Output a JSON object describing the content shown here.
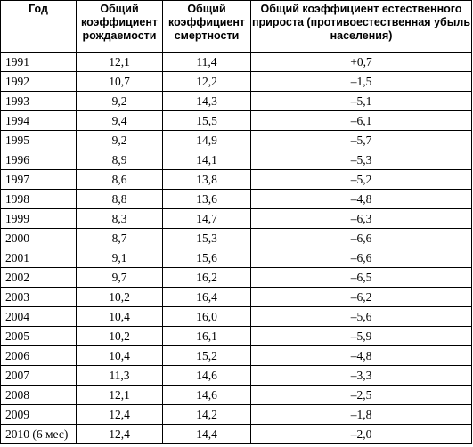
{
  "table": {
    "headers": [
      "Год",
      "Общий коэффициент рождаемости",
      "Общий коэффициент смертности",
      "Общий коэффициент естественного прироста (противоестественная убыль населения)"
    ],
    "rows": [
      {
        "year": "1991",
        "birth": "12,1",
        "death": "11,4",
        "growth": "+0,7"
      },
      {
        "year": "1992",
        "birth": "10,7",
        "death": "12,2",
        "growth": "–1,5"
      },
      {
        "year": "1993",
        "birth": "9,2",
        "death": "14,3",
        "growth": "–5,1"
      },
      {
        "year": "1994",
        "birth": "9,4",
        "death": "15,5",
        "growth": "–6,1"
      },
      {
        "year": "1995",
        "birth": "9,2",
        "death": "14,9",
        "growth": "–5,7"
      },
      {
        "year": "1996",
        "birth": "8,9",
        "death": "14,1",
        "growth": "–5,3"
      },
      {
        "year": "1997",
        "birth": "8,6",
        "death": "13,8",
        "growth": "–5,2"
      },
      {
        "year": "1998",
        "birth": "8,8",
        "death": "13,6",
        "growth": "–4,8"
      },
      {
        "year": "1999",
        "birth": "8,3",
        "death": "14,7",
        "growth": "–6,3"
      },
      {
        "year": "2000",
        "birth": "8,7",
        "death": "15,3",
        "growth": "–6,6"
      },
      {
        "year": "2001",
        "birth": "9,1",
        "death": "15,6",
        "growth": "–6,6"
      },
      {
        "year": "2002",
        "birth": "9,7",
        "death": "16,2",
        "growth": "–6,5"
      },
      {
        "year": "2003",
        "birth": "10,2",
        "death": "16,4",
        "growth": "–6,2"
      },
      {
        "year": "2004",
        "birth": "10,4",
        "death": "16,0",
        "growth": "–5,6"
      },
      {
        "year": "2005",
        "birth": "10,2",
        "death": "16,1",
        "growth": "–5,9"
      },
      {
        "year": "2006",
        "birth": "10,4",
        "death": "15,2",
        "growth": "–4,8"
      },
      {
        "year": "2007",
        "birth": "11,3",
        "death": "14,6",
        "growth": "–3,3"
      },
      {
        "year": "2008",
        "birth": "12,1",
        "death": "14,6",
        "growth": "–2,5"
      },
      {
        "year": "2009",
        "birth": "12,4",
        "death": "14,2",
        "growth": "–1,8"
      },
      {
        "year": "2010 (6 мес)",
        "birth": "12,4",
        "death": "14,4",
        "growth": "–2,0"
      }
    ]
  }
}
